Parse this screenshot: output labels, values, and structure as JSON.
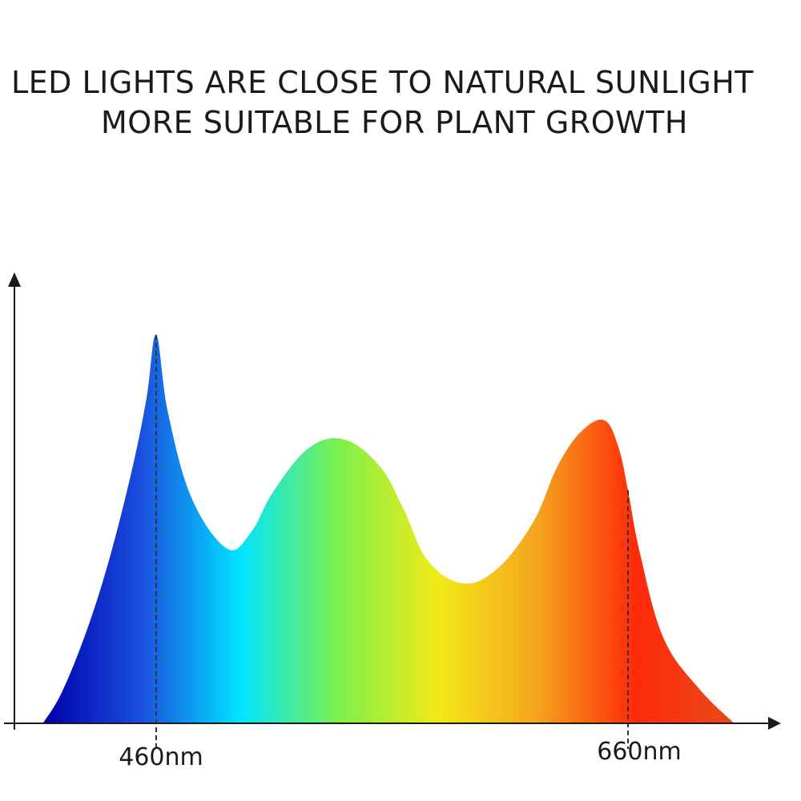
{
  "title": {
    "line1": "LED LIGHTS ARE CLOSE TO NATURAL SUNLIGHT",
    "line2": "MORE SUITABLE FOR PLANT GROWTH"
  },
  "chart_data": {
    "type": "area",
    "title": "LED LIGHTS ARE CLOSE TO NATURAL SUNLIGHT MORE SUITABLE FOR PLANT GROWTH",
    "xlabel": "",
    "ylabel": "",
    "x_unit": "nm",
    "x_tick_labels": [
      "460nm",
      "660nm"
    ],
    "x_ticks": [
      460,
      660
    ],
    "grid": false,
    "legend": "none",
    "series": [
      {
        "x": [
          412,
          420,
          430,
          440,
          450,
          456,
          460,
          465,
          475,
          490,
          500,
          510,
          525,
          540,
          555,
          565,
          575,
          590,
          605,
          620,
          630,
          640,
          650,
          656,
          660,
          665,
          675,
          690,
          705
        ],
        "values": [
          0,
          0.08,
          0.23,
          0.42,
          0.66,
          0.84,
          1.0,
          0.8,
          0.58,
          0.45,
          0.49,
          0.6,
          0.71,
          0.73,
          0.66,
          0.55,
          0.42,
          0.36,
          0.4,
          0.52,
          0.66,
          0.75,
          0.78,
          0.71,
          0.6,
          0.44,
          0.22,
          0.09,
          0.0
        ]
      }
    ],
    "gradient_colors": [
      "#0000aa",
      "#1a4fe0",
      "#00e5ff",
      "#7ef04a",
      "#f2ea18",
      "#f5a51d",
      "#ff2a0a",
      "#e84a1a"
    ],
    "markers": [
      {
        "x": 460,
        "label": "460nm"
      },
      {
        "x": 660,
        "label": "660nm"
      }
    ],
    "colors": {
      "axis": "#1a1a1a",
      "dashed_marker": "#333333"
    }
  }
}
